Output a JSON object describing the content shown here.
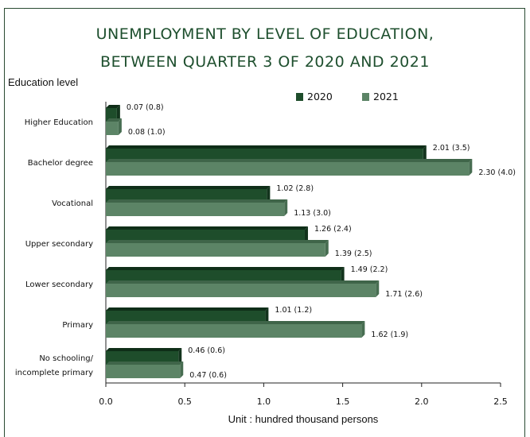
{
  "chart_data": {
    "type": "bar",
    "orientation": "horizontal",
    "title_line1": "UNEMPLOYMENT BY LEVEL OF EDUCATION,",
    "title_line2": "BETWEEN QUARTER 3 OF 2020 AND 2021",
    "ylabel": "Education level",
    "xlabel": "Unit : hundred thousand persons",
    "xlim": [
      0,
      2.5
    ],
    "xticks": [
      "0.0",
      "0.5",
      "1.0",
      "1.5",
      "2.0",
      "2.5"
    ],
    "legend_position": "top-right",
    "categories": [
      [
        "Higher Education"
      ],
      [
        "Bachelor degree"
      ],
      [
        "Vocational"
      ],
      [
        "Upper secondary"
      ],
      [
        "Lower secondary"
      ],
      [
        "Primary"
      ],
      [
        "No schooling/",
        "incomplete primary"
      ]
    ],
    "series": [
      {
        "name": "2020",
        "color": "#1e4d2b",
        "top_color": "#0f2e18",
        "side_color": "#13341d",
        "values": [
          0.07,
          2.01,
          1.02,
          1.26,
          1.49,
          1.01,
          0.46
        ],
        "labels": [
          "0.07 (0.8)",
          "2.01 (3.5)",
          "1.02 (2.8)",
          "1.26 (2.4)",
          "1.49 (2.2)",
          "1.01 (1.2)",
          "0.46 (0.6)"
        ]
      },
      {
        "name": "2021",
        "color": "#5c8466",
        "top_color": "#3f6549",
        "side_color": "#476d51",
        "values": [
          0.08,
          2.3,
          1.13,
          1.39,
          1.71,
          1.62,
          0.47
        ],
        "labels": [
          "0.08 (1.0)",
          "2.30 (4.0)",
          "1.13 (3.0)",
          "1.39 (2.5)",
          "1.71 (2.6)",
          "1.62 (1.9)",
          "0.47 (0.6)"
        ]
      }
    ]
  }
}
